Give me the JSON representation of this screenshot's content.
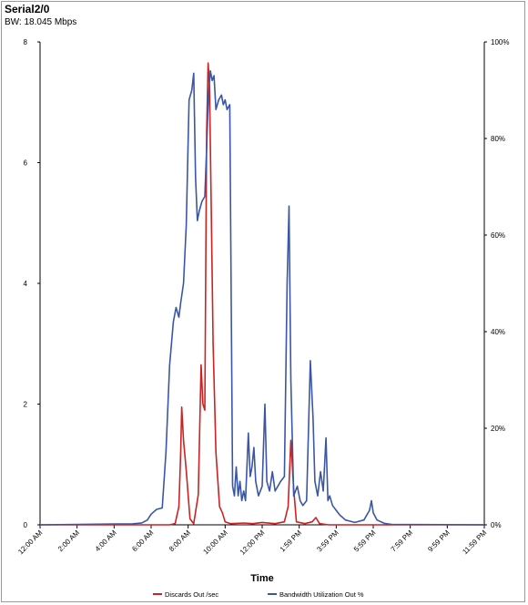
{
  "chart_data": {
    "type": "line",
    "title": "Serial2/0",
    "subtitle": "BW: 18.045 Mbps",
    "xlabel": "Time",
    "x_ticks": [
      "12:00 AM",
      "2:00 AM",
      "4:00 AM",
      "6:00 AM",
      "8:00 AM",
      "10:00 AM",
      "12:00 PM",
      "1:59 PM",
      "3:59 PM",
      "5:59 PM",
      "7:59 PM",
      "9:59 PM",
      "11:59 PM"
    ],
    "xlim": [
      0,
      24
    ],
    "y_left": {
      "ticks": [
        "0",
        "2",
        "4",
        "6",
        "8"
      ],
      "ylim": [
        0,
        8
      ]
    },
    "y_right": {
      "ticks": [
        "0%",
        "20%",
        "40%",
        "60%",
        "80%",
        "100%"
      ],
      "ylim": [
        0,
        100
      ]
    },
    "grid": false,
    "legend_position": "bottom",
    "series": [
      {
        "name": "Discards Out /sec",
        "axis": "left",
        "color": "#cc2222",
        "points": [
          [
            0,
            0
          ],
          [
            7,
            0
          ],
          [
            7.3,
            0.02
          ],
          [
            7.5,
            0.3
          ],
          [
            7.6,
            1.2
          ],
          [
            7.65,
            1.95
          ],
          [
            7.75,
            1.4
          ],
          [
            7.9,
            0.9
          ],
          [
            8.1,
            0.1
          ],
          [
            8.3,
            0.02
          ],
          [
            8.55,
            0.5
          ],
          [
            8.7,
            2.65
          ],
          [
            8.8,
            2.0
          ],
          [
            8.9,
            1.9
          ],
          [
            9.0,
            6.5
          ],
          [
            9.08,
            7.65
          ],
          [
            9.15,
            7.3
          ],
          [
            9.25,
            5.2
          ],
          [
            9.35,
            3.0
          ],
          [
            9.5,
            1.2
          ],
          [
            9.7,
            0.3
          ],
          [
            9.85,
            0.2
          ],
          [
            10.0,
            0.05
          ],
          [
            10.3,
            0.02
          ],
          [
            11.0,
            0.03
          ],
          [
            11.5,
            0.02
          ],
          [
            12.0,
            0.04
          ],
          [
            12.7,
            0.02
          ],
          [
            13.2,
            0.05
          ],
          [
            13.4,
            0.3
          ],
          [
            13.55,
            1.4
          ],
          [
            13.7,
            0.6
          ],
          [
            13.85,
            0.05
          ],
          [
            14.3,
            0.02
          ],
          [
            14.7,
            0.05
          ],
          [
            14.9,
            0.12
          ],
          [
            15.1,
            0.02
          ],
          [
            15.6,
            0
          ],
          [
            24,
            0
          ]
        ]
      },
      {
        "name": "Bandwidth Utilization Out %",
        "axis": "right",
        "color": "#3a56a5",
        "points": [
          [
            0,
            0
          ],
          [
            5.0,
            0.2
          ],
          [
            5.5,
            0.4
          ],
          [
            5.8,
            1.0
          ],
          [
            6.0,
            2.2
          ],
          [
            6.3,
            3.2
          ],
          [
            6.6,
            3.5
          ],
          [
            6.8,
            15
          ],
          [
            7.0,
            33
          ],
          [
            7.2,
            42
          ],
          [
            7.35,
            45
          ],
          [
            7.5,
            43
          ],
          [
            7.6,
            46
          ],
          [
            7.75,
            50
          ],
          [
            7.9,
            62
          ],
          [
            8.05,
            88
          ],
          [
            8.2,
            90
          ],
          [
            8.3,
            93.5
          ],
          [
            8.4,
            72
          ],
          [
            8.5,
            63
          ],
          [
            8.6,
            65
          ],
          [
            8.75,
            67
          ],
          [
            8.9,
            68
          ],
          [
            9.0,
            78
          ],
          [
            9.1,
            89
          ],
          [
            9.2,
            94
          ],
          [
            9.3,
            92
          ],
          [
            9.4,
            93
          ],
          [
            9.5,
            86
          ],
          [
            9.65,
            88
          ],
          [
            9.8,
            89
          ],
          [
            9.9,
            87
          ],
          [
            10.0,
            88
          ],
          [
            10.1,
            86
          ],
          [
            10.25,
            87
          ],
          [
            10.4,
            8
          ],
          [
            10.5,
            6
          ],
          [
            10.6,
            12
          ],
          [
            10.7,
            6
          ],
          [
            10.8,
            9
          ],
          [
            10.9,
            5
          ],
          [
            11.0,
            7
          ],
          [
            11.1,
            5
          ],
          [
            11.25,
            19
          ],
          [
            11.35,
            10
          ],
          [
            11.45,
            12
          ],
          [
            11.55,
            16
          ],
          [
            11.65,
            9
          ],
          [
            11.8,
            6
          ],
          [
            12.0,
            8
          ],
          [
            12.15,
            25
          ],
          [
            12.25,
            9
          ],
          [
            12.4,
            7
          ],
          [
            12.55,
            11
          ],
          [
            12.7,
            7
          ],
          [
            13.0,
            9
          ],
          [
            13.2,
            10
          ],
          [
            13.35,
            50
          ],
          [
            13.45,
            66
          ],
          [
            13.55,
            30
          ],
          [
            13.7,
            6
          ],
          [
            13.9,
            8
          ],
          [
            14.05,
            5
          ],
          [
            14.2,
            4
          ],
          [
            14.4,
            5
          ],
          [
            14.6,
            34
          ],
          [
            14.75,
            22
          ],
          [
            14.85,
            9
          ],
          [
            15.0,
            6
          ],
          [
            15.15,
            11
          ],
          [
            15.3,
            7
          ],
          [
            15.45,
            18
          ],
          [
            15.55,
            5
          ],
          [
            15.65,
            6
          ],
          [
            15.8,
            4
          ],
          [
            16.0,
            3
          ],
          [
            16.2,
            2
          ],
          [
            16.5,
            1
          ],
          [
            17.0,
            0.5
          ],
          [
            17.5,
            1.0
          ],
          [
            17.8,
            3
          ],
          [
            17.9,
            5
          ],
          [
            18.0,
            2.5
          ],
          [
            18.2,
            1
          ],
          [
            18.6,
            0.3
          ],
          [
            19.0,
            0.1
          ],
          [
            24,
            0
          ]
        ]
      }
    ]
  }
}
